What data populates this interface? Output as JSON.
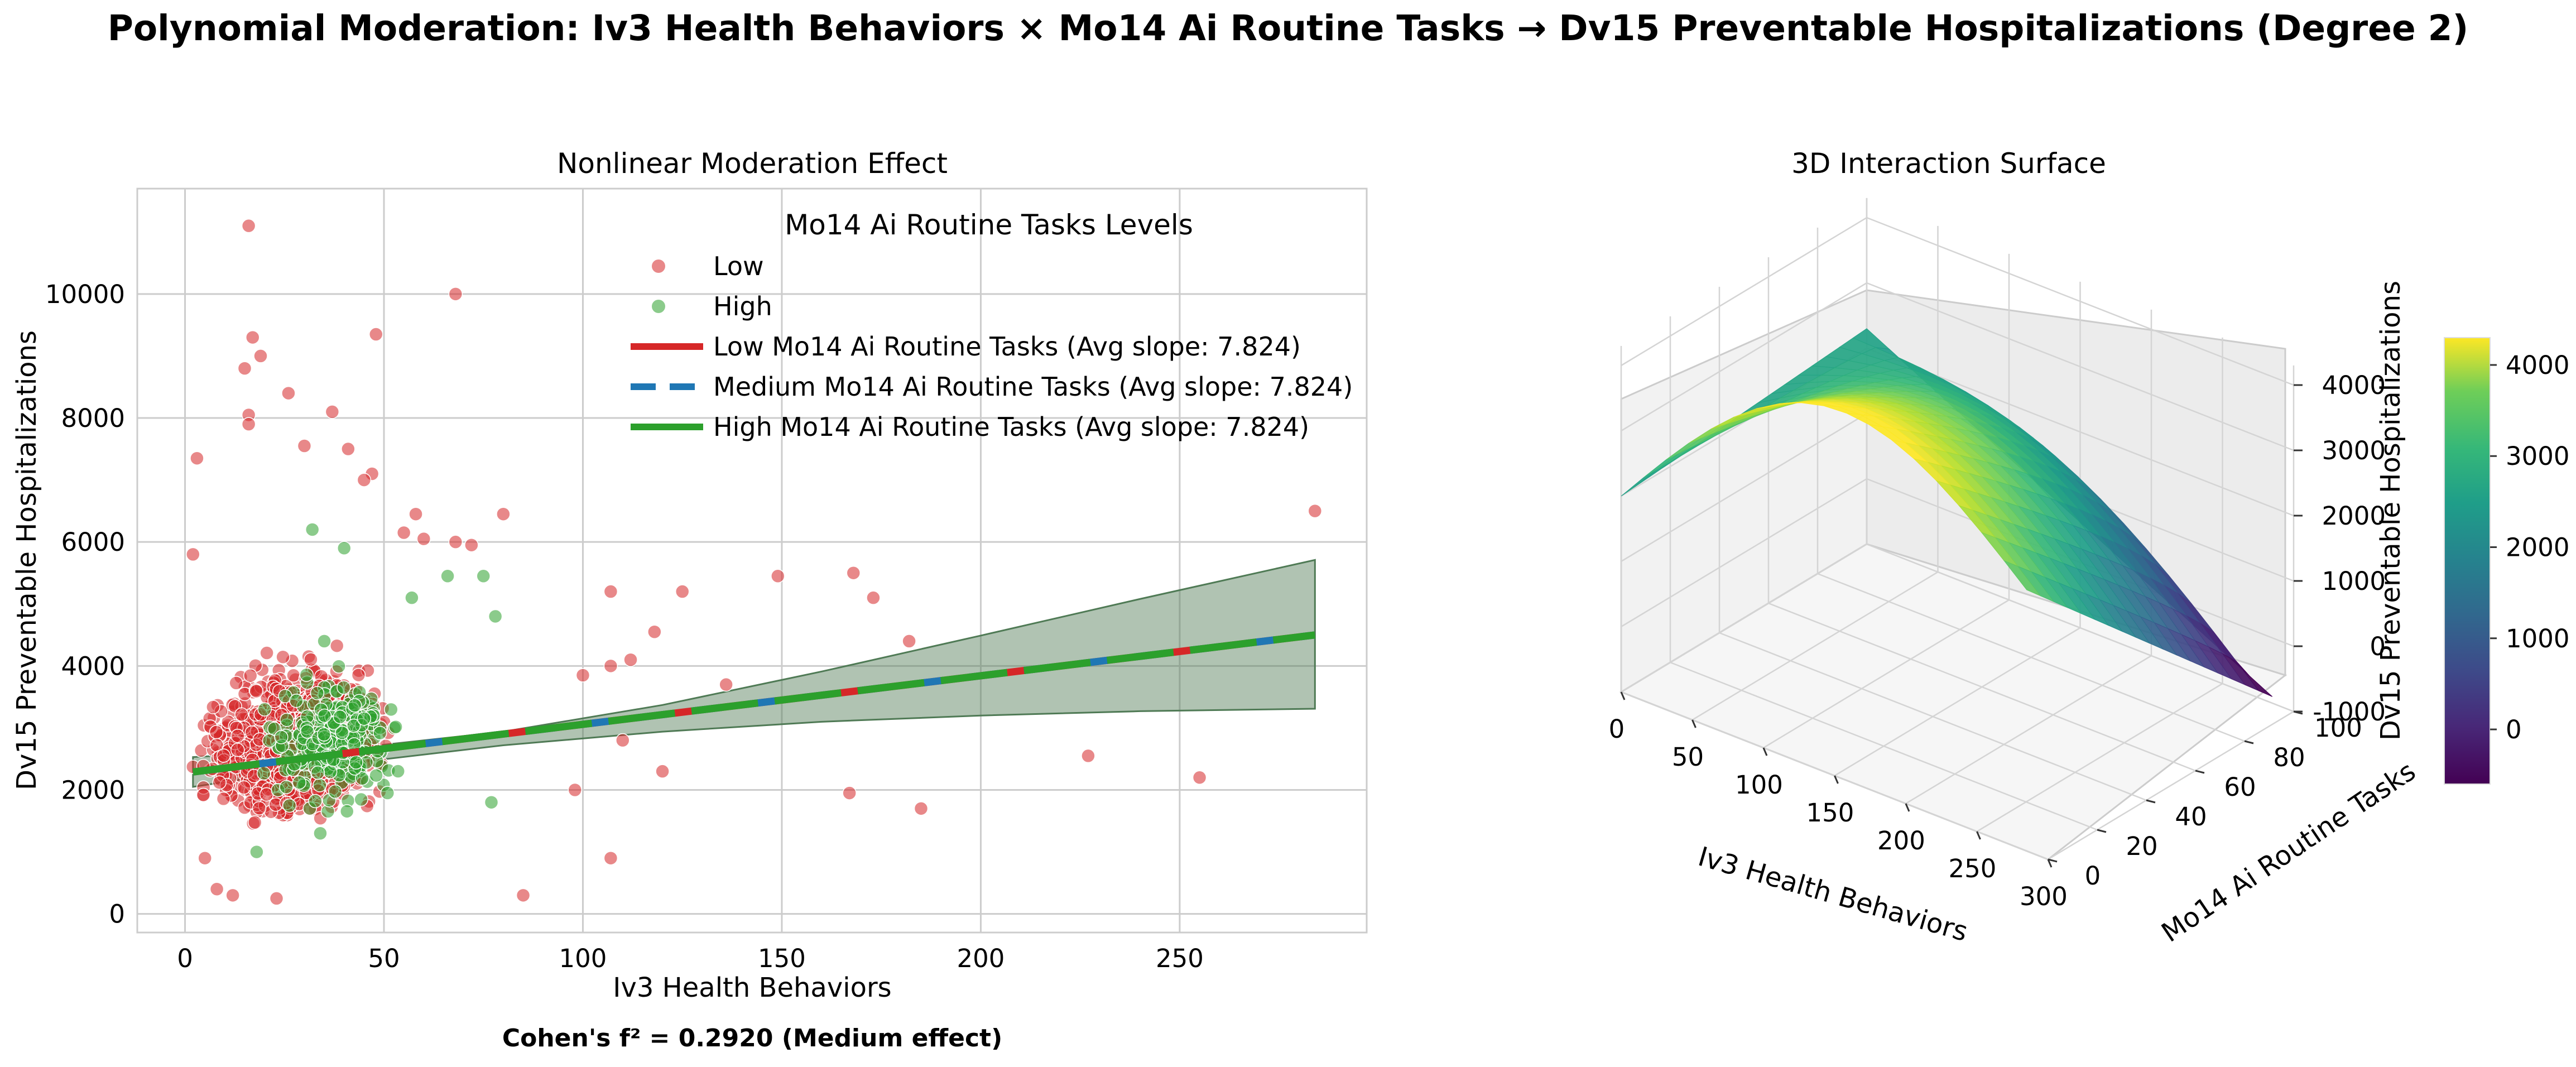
{
  "figure": {
    "title": "Polynomial Moderation: Iv3 Health Behaviors × Mo14 Ai Routine Tasks → Dv15 Preventable Hospitalizations (Degree 2)",
    "footnote": "Cohen's f² = 0.2920 (Medium effect)"
  },
  "chart_data": [
    {
      "type": "scatter",
      "title": "Nonlinear Moderation Effect",
      "xlabel": "Iv3 Health Behaviors",
      "ylabel": "Dv15 Preventable Hospitalizations",
      "xlim": [
        -12,
        297
      ],
      "ylim": [
        -300,
        11700
      ],
      "xticks": [
        0,
        50,
        100,
        150,
        200,
        250
      ],
      "yticks": [
        0,
        2000,
        4000,
        6000,
        8000,
        10000
      ],
      "grid": true,
      "legend": {
        "title": "Mo14 Ai Routine Tasks Levels",
        "placement": "upper right",
        "entries": [
          {
            "label": "Low",
            "kind": "marker",
            "color": "#d62728"
          },
          {
            "label": "High",
            "kind": "marker",
            "color": "#2ca02c"
          },
          {
            "label": "Low Mo14 Ai Routine Tasks (Avg slope: 7.824)",
            "kind": "line",
            "color": "#d62728",
            "dash": "solid"
          },
          {
            "label": "Medium Mo14 Ai Routine Tasks (Avg slope: 7.824)",
            "kind": "line",
            "color": "#1f77b4",
            "dash": "dashed"
          },
          {
            "label": "High Mo14 Ai Routine Tasks (Avg slope: 7.824)",
            "kind": "line",
            "color": "#2ca02c",
            "dash": "solid"
          }
        ]
      },
      "scatter_series": [
        {
          "name": "Low",
          "color": "#d62728",
          "approx_count": 1400,
          "points": [
            [
              16,
              11100
            ],
            [
              68,
              10000
            ],
            [
              48,
              9350
            ],
            [
              17,
              9300
            ],
            [
              19,
              9000
            ],
            [
              15,
              8800
            ],
            [
              26,
              8400
            ],
            [
              37,
              8100
            ],
            [
              16,
              8050
            ],
            [
              3,
              7350
            ],
            [
              16,
              7900
            ],
            [
              30,
              7550
            ],
            [
              41,
              7500
            ],
            [
              47,
              7100
            ],
            [
              45,
              7000
            ],
            [
              58,
              6450
            ],
            [
              80,
              6450
            ],
            [
              55,
              6150
            ],
            [
              60,
              6050
            ],
            [
              68,
              6000
            ],
            [
              72,
              5950
            ],
            [
              125,
              5200
            ],
            [
              168,
              5500
            ],
            [
              149,
              5450
            ],
            [
              173,
              5100
            ],
            [
              107,
              5200
            ],
            [
              118,
              4550
            ],
            [
              182,
              4400
            ],
            [
              284,
              6500
            ],
            [
              107,
              4000
            ],
            [
              112,
              4100
            ],
            [
              136,
              3700
            ],
            [
              100,
              3850
            ],
            [
              227,
              2550
            ],
            [
              255,
              2200
            ],
            [
              167,
              1950
            ],
            [
              185,
              1700
            ],
            [
              107,
              900
            ],
            [
              85,
              300
            ],
            [
              120,
              2300
            ],
            [
              110,
              2800
            ],
            [
              98,
              2000
            ],
            [
              2,
              5800
            ],
            [
              8,
              400
            ],
            [
              12,
              300
            ],
            [
              23,
              250
            ],
            [
              5,
              900
            ]
          ],
          "cluster": {
            "x_center": 28,
            "x_spread": 22,
            "y_center": 2800,
            "y_spread": 1100,
            "x_range": [
              2,
              98
            ]
          }
        },
        {
          "name": "High",
          "color": "#2ca02c",
          "approx_count": 250,
          "points": [
            [
              32,
              6200
            ],
            [
              40,
              5900
            ],
            [
              66,
              5450
            ],
            [
              75,
              5450
            ],
            [
              57,
              5100
            ],
            [
              78,
              4800
            ],
            [
              35,
              4400
            ],
            [
              20,
              3300
            ],
            [
              45,
              3150
            ],
            [
              77,
              1800
            ],
            [
              34,
              1300
            ],
            [
              18,
              1000
            ]
          ],
          "cluster": {
            "x_center": 38,
            "x_spread": 18,
            "y_center": 2800,
            "y_spread": 1000,
            "x_range": [
              5,
              85
            ]
          }
        }
      ],
      "fit_lines": [
        {
          "name": "Low Mo14 Ai Routine Tasks (Avg slope: 7.824)",
          "color": "#d62728",
          "x": [
            2,
            284
          ],
          "y": [
            2290,
            4500
          ]
        },
        {
          "name": "Medium Mo14 Ai Routine Tasks (Avg slope: 7.824)",
          "color": "#1f77b4",
          "x": [
            2,
            284
          ],
          "y": [
            2290,
            4500
          ]
        },
        {
          "name": "High Mo14 Ai Routine Tasks (Avg slope: 7.824)",
          "color": "#2ca02c",
          "x": [
            2,
            284
          ],
          "y": [
            2290,
            4500
          ]
        }
      ],
      "confidence_band": {
        "color": "#4f7a55",
        "x": [
          2,
          40,
          80,
          120,
          160,
          200,
          240,
          284
        ],
        "lower": [
          2050,
          2420,
          2720,
          2940,
          3100,
          3200,
          3270,
          3310
        ],
        "upper": [
          2530,
          2660,
          2940,
          3370,
          3910,
          4490,
          5080,
          5710
        ]
      }
    },
    {
      "type": "surface",
      "title": "3D Interaction Surface",
      "xlabel": "Iv3 Health Behaviors",
      "ylabel": "Mo14 Ai Routine Tasks",
      "zlabel": "Dv15 Preventable Hospitalizations",
      "xlim": [
        0,
        300
      ],
      "ylim": [
        0,
        100
      ],
      "zlim": [
        -1000,
        4000
      ],
      "xticks": [
        0,
        50,
        100,
        150,
        200,
        250,
        300
      ],
      "yticks": [
        0,
        20,
        40,
        60,
        80,
        100
      ],
      "zticks": [
        -1000,
        0,
        1000,
        2000,
        3000,
        4000
      ],
      "colormap": "viridis",
      "colorbar": {
        "range": [
          -600,
          4300
        ],
        "ticks": [
          0,
          1000,
          2000,
          3000,
          4000
        ]
      },
      "surface_extent": {
        "x": [
          0,
          285
        ],
        "y": [
          0,
          100
        ]
      },
      "z_corners": {
        "x0_y0": 2000,
        "x0_y100": 2300,
        "xmax_y0": 3000,
        "xmax_y100": -900,
        "peak": 4200
      }
    }
  ]
}
